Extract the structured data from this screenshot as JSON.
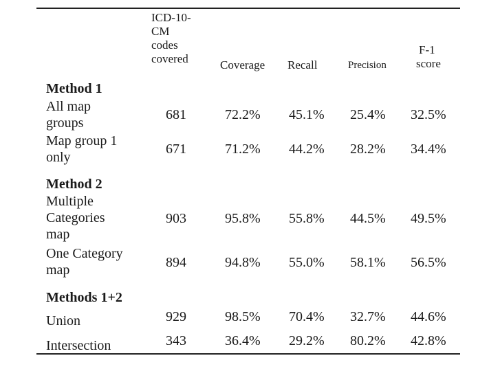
{
  "table": {
    "headers": {
      "codes": [
        "ICD-10-",
        "CM",
        "codes",
        "covered"
      ],
      "coverage": "Coverage",
      "recall": "Recall",
      "precision": "Precision",
      "f1": [
        "F-1",
        "score"
      ]
    },
    "sections": [
      {
        "title": "Method 1",
        "rows": [
          {
            "label": [
              "All map",
              "groups"
            ],
            "codes": "681",
            "coverage": "72.2%",
            "recall": "45.1%",
            "precision": "25.4%",
            "f1": "32.5%"
          },
          {
            "label": [
              "Map group 1",
              "only"
            ],
            "codes": "671",
            "coverage": "71.2%",
            "recall": "44.2%",
            "precision": "28.2%",
            "f1": "34.4%"
          }
        ]
      },
      {
        "title": "Method 2",
        "rows": [
          {
            "label": [
              "Multiple",
              "Categories",
              "map"
            ],
            "codes": "903",
            "coverage": "95.8%",
            "recall": "55.8%",
            "precision": "44.5%",
            "f1": "49.5%"
          },
          {
            "label": [
              "One Category",
              "map"
            ],
            "codes": "894",
            "coverage": "94.8%",
            "recall": "55.0%",
            "precision": "58.1%",
            "f1": "56.5%"
          }
        ]
      },
      {
        "title": "Methods 1+2",
        "rows": [
          {
            "label": [
              "Union"
            ],
            "codes": "929",
            "coverage": "98.5%",
            "recall": "70.4%",
            "precision": "32.7%",
            "f1": "44.6%"
          },
          {
            "label": [
              "Intersection"
            ],
            "codes": "343",
            "coverage": "36.4%",
            "recall": "29.2%",
            "precision": "80.2%",
            "f1": "42.8%"
          }
        ]
      }
    ]
  }
}
